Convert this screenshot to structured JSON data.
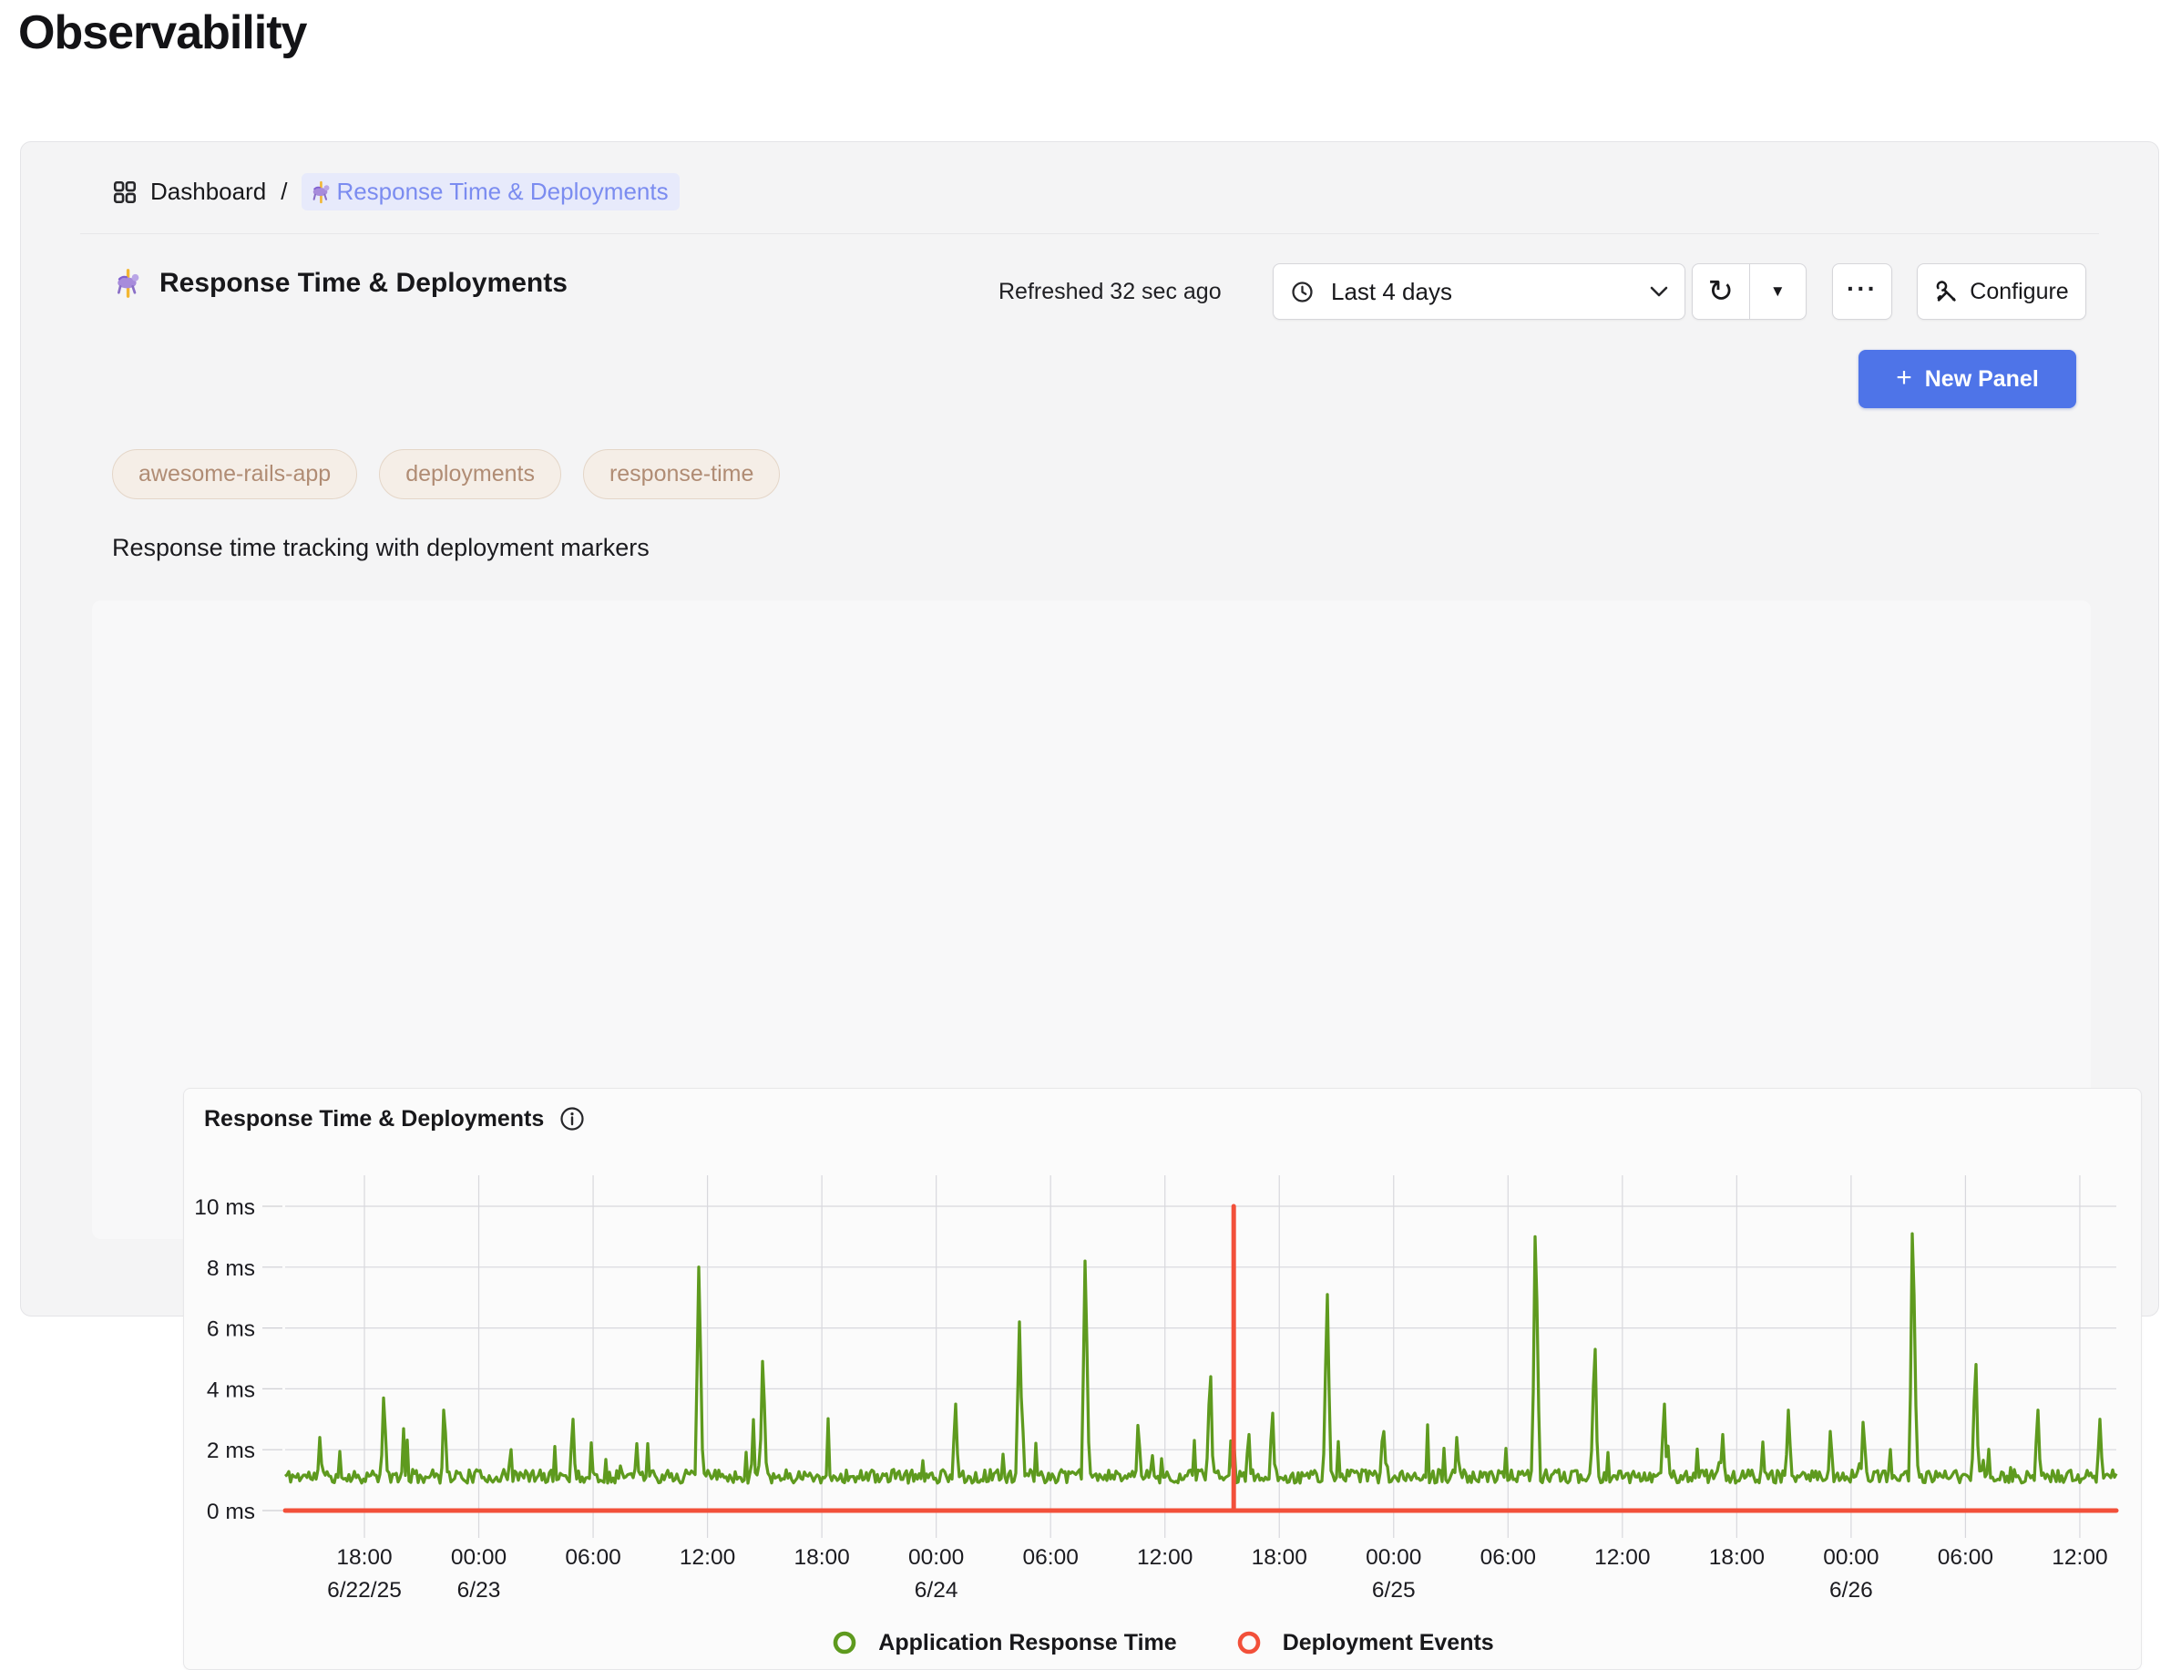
{
  "page": {
    "title": "Observability"
  },
  "breadcrumb": {
    "dashboard_label": "Dashboard",
    "separator": "/",
    "current_label": "Response Time & Deployments"
  },
  "header": {
    "title": "Response Time & Deployments",
    "refreshed": "Refreshed 32 sec ago",
    "time_range_value": "Last 4 days",
    "configure_label": "Configure",
    "new_panel_label": "New Panel",
    "more_glyph": "···"
  },
  "icons": {
    "refresh": "↻",
    "caret_down": "▼",
    "plus": "+"
  },
  "tags": [
    "awesome-rails-app",
    "deployments",
    "response-time"
  ],
  "description": "Response time tracking with deployment markers",
  "colors": {
    "accent_blue": "#4e74e8",
    "breadcrumb_link": "#7b8cf0",
    "tag_text": "#b08c74",
    "series_green": "#5e9a1e",
    "series_red": "#f2503a",
    "grid": "#d8d8dd",
    "axis_text": "#1b1b20"
  },
  "chart_data": {
    "type": "line",
    "title": "Response Time & Deployments",
    "y_unit": "ms",
    "y_ticks": [
      0,
      2,
      4,
      6,
      8,
      10
    ],
    "ylim": [
      0,
      10.5
    ],
    "grid": true,
    "legend_position": "bottom",
    "x_ticks": [
      {
        "label": "18:00",
        "date": "6/22/25"
      },
      {
        "label": "00:00",
        "date": "6/23"
      },
      {
        "label": "06:00"
      },
      {
        "label": "12:00"
      },
      {
        "label": "18:00"
      },
      {
        "label": "00:00",
        "date": "6/24"
      },
      {
        "label": "06:00"
      },
      {
        "label": "12:00"
      },
      {
        "label": "18:00"
      },
      {
        "label": "00:00",
        "date": "6/25"
      },
      {
        "label": "06:00"
      },
      {
        "label": "12:00"
      },
      {
        "label": "18:00"
      },
      {
        "label": "00:00",
        "date": "6/26"
      },
      {
        "label": "06:00"
      },
      {
        "label": "12:00"
      }
    ],
    "series": [
      {
        "name": "Application Response Time",
        "color": "#5e9a1e",
        "baseline_ms": 1.1,
        "noise_band_ms": [
          0.9,
          1.35
        ],
        "minor_spike_prob": 0.05,
        "minor_spike_max_ms": 2.2,
        "seed": 11,
        "spikes": [
          [
            0.019,
            2.4
          ],
          [
            0.054,
            3.7
          ],
          [
            0.087,
            3.3
          ],
          [
            0.123,
            2.0
          ],
          [
            0.157,
            3.0
          ],
          [
            0.192,
            2.2
          ],
          [
            0.226,
            8.0
          ],
          [
            0.261,
            4.9
          ],
          [
            0.366,
            3.5
          ],
          [
            0.401,
            6.2
          ],
          [
            0.437,
            8.2
          ],
          [
            0.466,
            2.8
          ],
          [
            0.505,
            4.4
          ],
          [
            0.526,
            2.5
          ],
          [
            0.539,
            3.2
          ],
          [
            0.569,
            7.1
          ],
          [
            0.6,
            2.6
          ],
          [
            0.64,
            2.4
          ],
          [
            0.683,
            9.0
          ],
          [
            0.715,
            5.3
          ],
          [
            0.753,
            3.5
          ],
          [
            0.785,
            2.5
          ],
          [
            0.821,
            3.3
          ],
          [
            0.844,
            2.6
          ],
          [
            0.862,
            2.9
          ],
          [
            0.889,
            9.1
          ],
          [
            0.923,
            4.8
          ],
          [
            0.957,
            3.3
          ],
          [
            0.991,
            3.0
          ]
        ]
      },
      {
        "name": "Deployment Events",
        "color": "#f2503a",
        "baseline_value_ms": 0,
        "events": [
          {
            "x": 0.518,
            "v": 10
          }
        ]
      }
    ],
    "legend": [
      {
        "label": "Application Response Time",
        "color": "#5e9a1e"
      },
      {
        "label": "Deployment Events",
        "color": "#f2503a"
      }
    ]
  }
}
